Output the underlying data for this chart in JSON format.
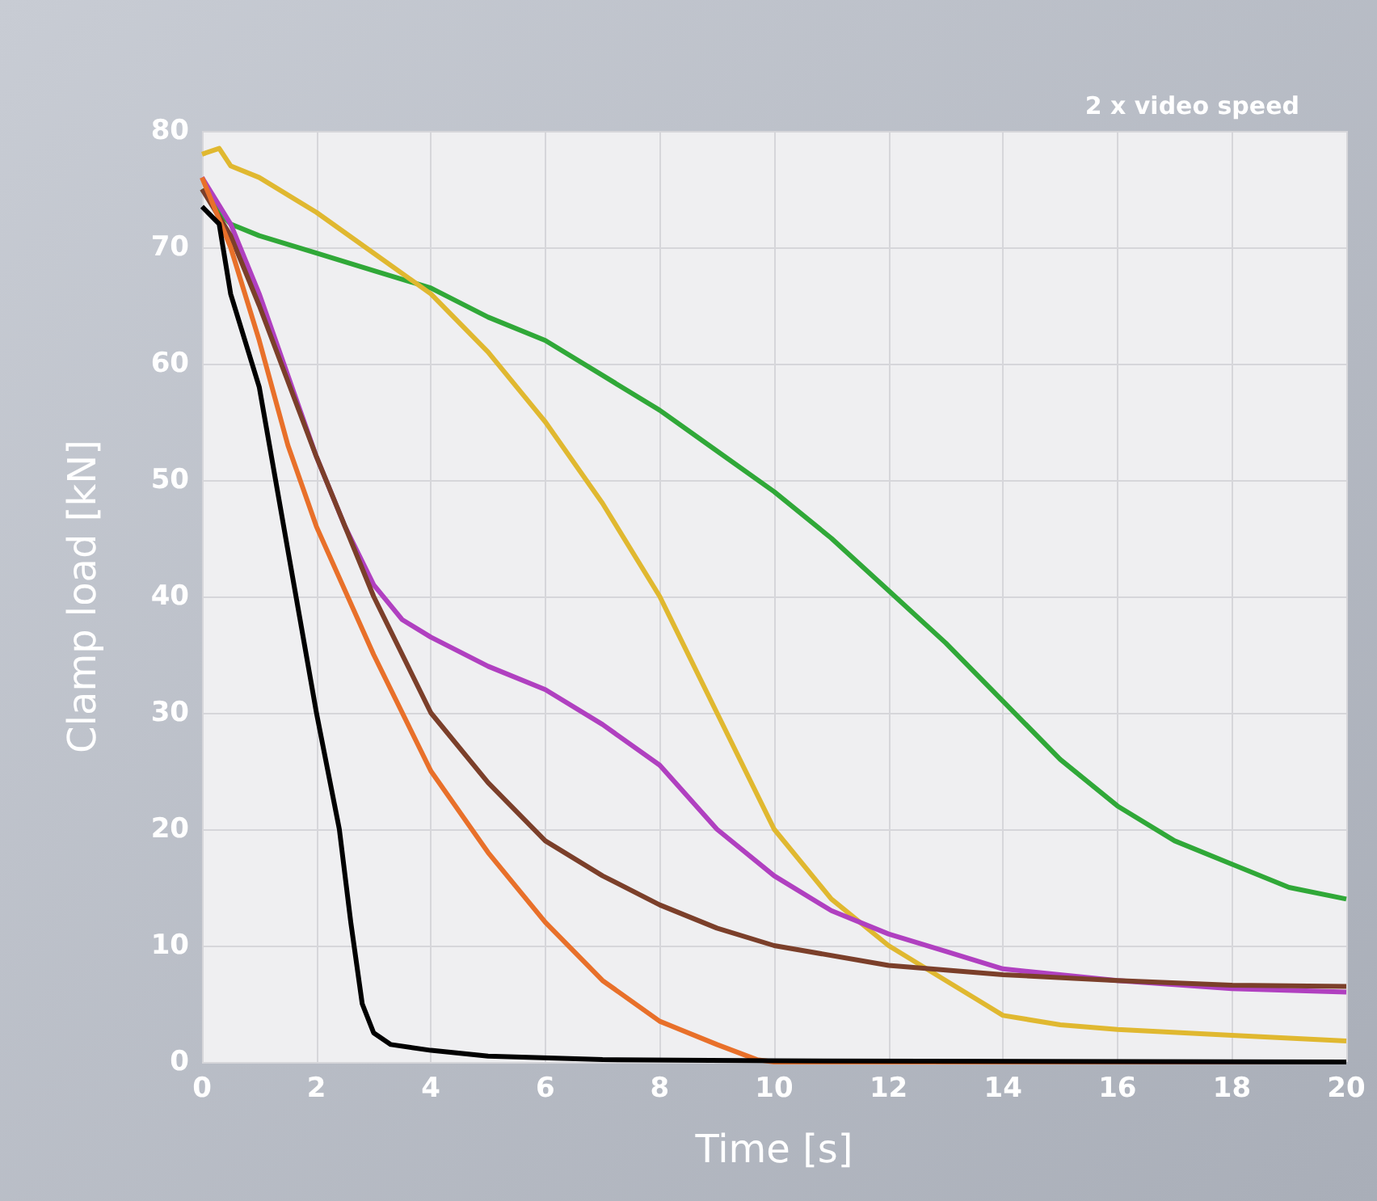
{
  "chart_data": {
    "type": "line",
    "xlabel": "Time [s]",
    "ylabel": "Clamp load [kN]",
    "annotations": [
      "2 x video speed"
    ],
    "xlim": [
      0,
      20
    ],
    "xticks": [
      0,
      2,
      4,
      6,
      8,
      10,
      12,
      14,
      16,
      18,
      20
    ],
    "ylim": [
      0,
      80
    ],
    "yticks": [
      0,
      10,
      20,
      30,
      40,
      50,
      60,
      70,
      80
    ],
    "grid": true,
    "marker": "none",
    "line_style": "solid",
    "series": [
      {
        "color": "#30a838",
        "x": [
          0,
          0.3,
          0.5,
          1,
          2,
          3,
          4,
          5,
          6,
          7,
          8,
          9,
          10,
          11,
          12,
          13,
          14,
          15,
          16,
          17,
          18,
          19,
          20
        ],
        "values": [
          75,
          73,
          72,
          71,
          69.5,
          68,
          66.5,
          64,
          62,
          59,
          56,
          52.5,
          49,
          45,
          40.5,
          36,
          31,
          26,
          22,
          19,
          17,
          15,
          14
        ]
      },
      {
        "color": "#e0b830",
        "x": [
          0,
          0.3,
          0.5,
          1,
          2,
          3,
          4,
          5,
          6,
          7,
          8,
          9,
          10,
          11,
          12,
          13,
          13.5,
          14,
          15,
          16,
          18,
          20
        ],
        "values": [
          78,
          78.5,
          77,
          76,
          73,
          69.5,
          66,
          61,
          55,
          48,
          40,
          30,
          20,
          14,
          10,
          7,
          5.5,
          4,
          3.2,
          2.8,
          2.3,
          1.8
        ]
      },
      {
        "color": "#b040c0",
        "x": [
          0,
          0.5,
          1,
          2,
          2.5,
          3,
          3.5,
          4,
          5,
          6,
          7,
          8,
          9,
          10,
          11,
          12,
          13,
          14,
          16,
          18,
          20
        ],
        "values": [
          76,
          72,
          66,
          52,
          46,
          41,
          38,
          36.5,
          34,
          32,
          29,
          25.5,
          20,
          16,
          13,
          11,
          9.5,
          8,
          7,
          6.3,
          6
        ]
      },
      {
        "color": "#7b3f2a",
        "x": [
          0,
          0.5,
          1,
          2,
          3,
          4,
          5,
          6,
          7,
          8,
          9,
          10,
          12,
          14,
          16,
          18,
          20
        ],
        "values": [
          75,
          71,
          65,
          52,
          40,
          30,
          24,
          19,
          16,
          13.5,
          11.5,
          10,
          8.3,
          7.5,
          7,
          6.6,
          6.5
        ]
      },
      {
        "color": "#e8702a",
        "x": [
          0,
          0.5,
          1,
          1.5,
          2,
          3,
          4,
          5,
          6,
          7,
          8,
          9,
          9.7,
          10,
          20
        ],
        "values": [
          76,
          70,
          62,
          53,
          46,
          35,
          25,
          18,
          12,
          7,
          3.5,
          1.5,
          0.2,
          0,
          0
        ]
      },
      {
        "color": "#000000",
        "x": [
          0,
          0.3,
          0.5,
          1,
          1.5,
          2,
          2.4,
          2.6,
          2.8,
          3,
          3.3,
          4,
          5,
          7,
          10,
          20
        ],
        "values": [
          73.5,
          72,
          66,
          58,
          44,
          30,
          20,
          12,
          5,
          2.5,
          1.5,
          1,
          0.5,
          0.2,
          0.1,
          0
        ]
      }
    ]
  }
}
